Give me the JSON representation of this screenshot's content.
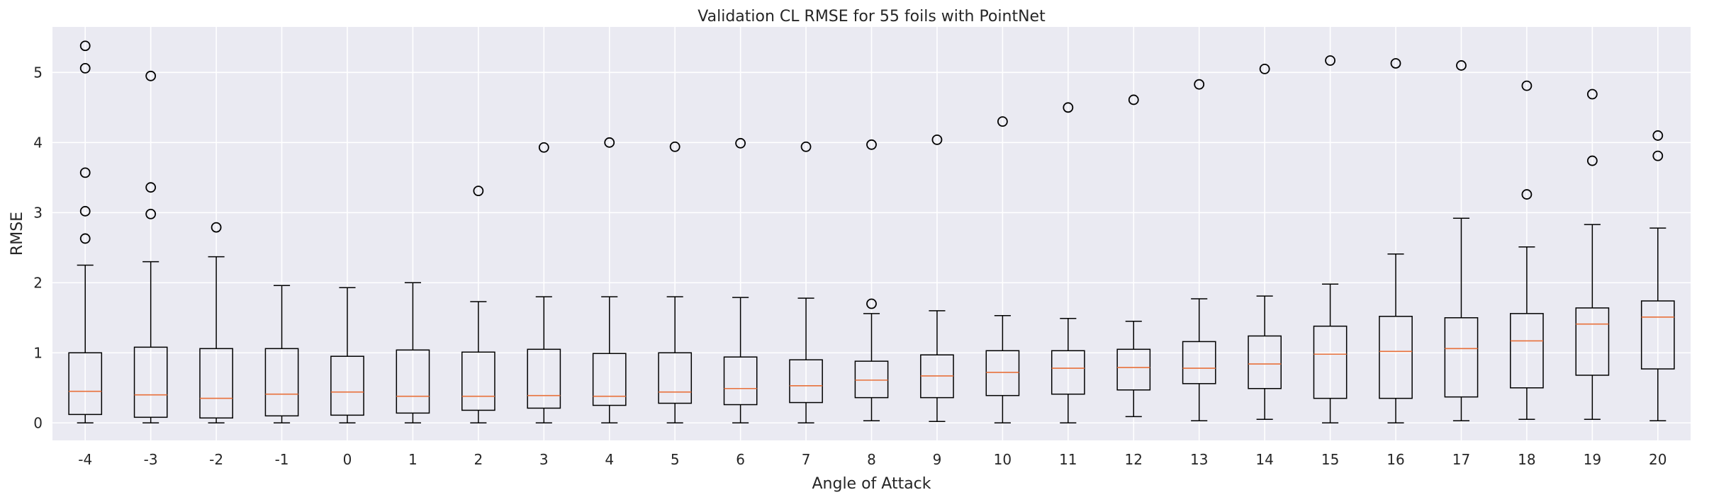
{
  "chart_data": {
    "type": "boxplot",
    "title": "Validation CL RMSE for 55 foils with PointNet",
    "xlabel": "Angle of Attack",
    "ylabel": "RMSE",
    "categories": [
      "-4",
      "-3",
      "-2",
      "-1",
      "0",
      "1",
      "2",
      "3",
      "4",
      "5",
      "6",
      "7",
      "8",
      "9",
      "10",
      "11",
      "12",
      "13",
      "14",
      "15",
      "16",
      "17",
      "18",
      "19",
      "20"
    ],
    "yticks": [
      0,
      1,
      2,
      3,
      4,
      5
    ],
    "ylim": [
      -0.25,
      5.65
    ],
    "grid": true,
    "colors": {
      "background": "#eaeaf2",
      "grid": "#ffffff",
      "box": "#000000",
      "median": "#e8703a"
    },
    "boxes": [
      {
        "whisker_low": 0.0,
        "q1": 0.12,
        "median": 0.45,
        "q3": 1.0,
        "whisker_high": 2.25,
        "outliers": [
          2.63,
          3.02,
          3.57,
          5.06,
          5.38
        ]
      },
      {
        "whisker_low": 0.0,
        "q1": 0.08,
        "median": 0.4,
        "q3": 1.08,
        "whisker_high": 2.3,
        "outliers": [
          2.98,
          3.36,
          4.95
        ]
      },
      {
        "whisker_low": 0.0,
        "q1": 0.07,
        "median": 0.35,
        "q3": 1.06,
        "whisker_high": 2.37,
        "outliers": [
          2.79
        ]
      },
      {
        "whisker_low": 0.0,
        "q1": 0.1,
        "median": 0.41,
        "q3": 1.06,
        "whisker_high": 1.96,
        "outliers": []
      },
      {
        "whisker_low": 0.0,
        "q1": 0.11,
        "median": 0.44,
        "q3": 0.95,
        "whisker_high": 1.93,
        "outliers": []
      },
      {
        "whisker_low": 0.0,
        "q1": 0.14,
        "median": 0.38,
        "q3": 1.04,
        "whisker_high": 2.0,
        "outliers": []
      },
      {
        "whisker_low": 0.0,
        "q1": 0.18,
        "median": 0.38,
        "q3": 1.01,
        "whisker_high": 1.73,
        "outliers": [
          3.31
        ]
      },
      {
        "whisker_low": 0.0,
        "q1": 0.21,
        "median": 0.39,
        "q3": 1.05,
        "whisker_high": 1.8,
        "outliers": [
          3.93
        ]
      },
      {
        "whisker_low": 0.0,
        "q1": 0.25,
        "median": 0.38,
        "q3": 0.99,
        "whisker_high": 1.8,
        "outliers": [
          4.0
        ]
      },
      {
        "whisker_low": 0.0,
        "q1": 0.28,
        "median": 0.44,
        "q3": 1.0,
        "whisker_high": 1.8,
        "outliers": [
          3.94
        ]
      },
      {
        "whisker_low": 0.0,
        "q1": 0.26,
        "median": 0.49,
        "q3": 0.94,
        "whisker_high": 1.79,
        "outliers": [
          3.99
        ]
      },
      {
        "whisker_low": 0.0,
        "q1": 0.29,
        "median": 0.53,
        "q3": 0.9,
        "whisker_high": 1.78,
        "outliers": [
          3.94
        ]
      },
      {
        "whisker_low": 0.03,
        "q1": 0.36,
        "median": 0.61,
        "q3": 0.88,
        "whisker_high": 1.56,
        "outliers": [
          1.7,
          3.97
        ]
      },
      {
        "whisker_low": 0.02,
        "q1": 0.36,
        "median": 0.67,
        "q3": 0.97,
        "whisker_high": 1.6,
        "outliers": [
          4.04
        ]
      },
      {
        "whisker_low": 0.0,
        "q1": 0.39,
        "median": 0.72,
        "q3": 1.03,
        "whisker_high": 1.53,
        "outliers": [
          4.3
        ]
      },
      {
        "whisker_low": 0.0,
        "q1": 0.41,
        "median": 0.78,
        "q3": 1.03,
        "whisker_high": 1.49,
        "outliers": [
          4.5
        ]
      },
      {
        "whisker_low": 0.09,
        "q1": 0.47,
        "median": 0.79,
        "q3": 1.05,
        "whisker_high": 1.45,
        "outliers": [
          4.61
        ]
      },
      {
        "whisker_low": 0.03,
        "q1": 0.56,
        "median": 0.78,
        "q3": 1.16,
        "whisker_high": 1.77,
        "outliers": [
          4.83
        ]
      },
      {
        "whisker_low": 0.05,
        "q1": 0.49,
        "median": 0.84,
        "q3": 1.24,
        "whisker_high": 1.81,
        "outliers": [
          5.05
        ]
      },
      {
        "whisker_low": 0.0,
        "q1": 0.35,
        "median": 0.98,
        "q3": 1.38,
        "whisker_high": 1.98,
        "outliers": [
          5.17
        ]
      },
      {
        "whisker_low": 0.0,
        "q1": 0.35,
        "median": 1.02,
        "q3": 1.52,
        "whisker_high": 2.41,
        "outliers": [
          5.13
        ]
      },
      {
        "whisker_low": 0.03,
        "q1": 0.37,
        "median": 1.06,
        "q3": 1.5,
        "whisker_high": 2.92,
        "outliers": [
          5.1
        ]
      },
      {
        "whisker_low": 0.05,
        "q1": 0.5,
        "median": 1.17,
        "q3": 1.56,
        "whisker_high": 2.51,
        "outliers": [
          3.26,
          4.81
        ]
      },
      {
        "whisker_low": 0.05,
        "q1": 0.68,
        "median": 1.41,
        "q3": 1.64,
        "whisker_high": 2.83,
        "outliers": [
          3.74,
          4.69
        ]
      },
      {
        "whisker_low": 0.03,
        "q1": 0.77,
        "median": 1.51,
        "q3": 1.74,
        "whisker_high": 2.78,
        "outliers": [
          3.81,
          4.1
        ]
      }
    ]
  }
}
